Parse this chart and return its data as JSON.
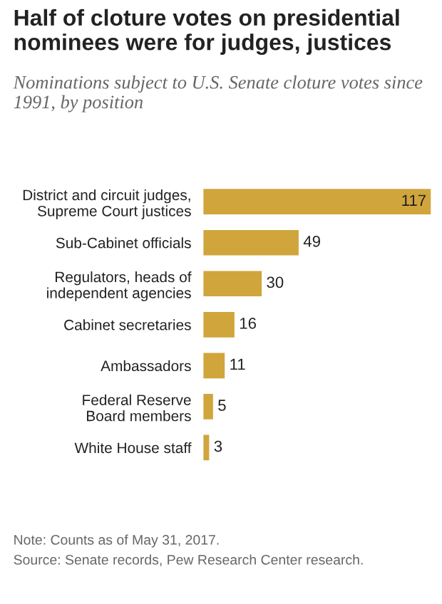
{
  "chart_data": {
    "type": "bar",
    "orientation": "horizontal",
    "title": "Half of cloture votes on presidential nominees were for judges, justices",
    "subtitle": "Nominations subject to U.S. Senate cloture votes since 1991, by position",
    "categories": [
      "District and circuit judges,\nSupreme Court justices",
      "Sub-Cabinet officials",
      "Regulators, heads of\nindependent agencies",
      "Cabinet secretaries",
      "Ambassadors",
      "Federal Reserve\nBoard members",
      "White House staff"
    ],
    "values": [
      117,
      49,
      30,
      16,
      11,
      5,
      3
    ],
    "color": "#d0a53c",
    "data_labels": true,
    "annotations": [
      "Note: Counts as of May 31, 2017.",
      "Source: Senate records, Pew Research Center research."
    ]
  }
}
